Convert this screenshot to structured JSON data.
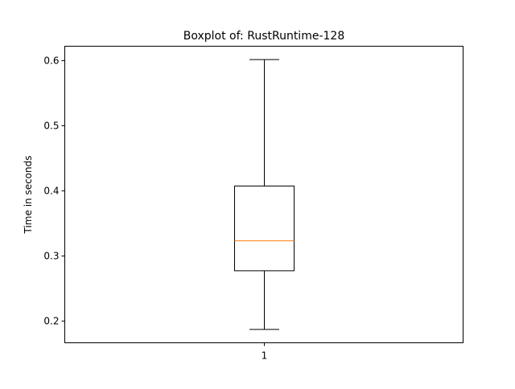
{
  "chart_data": {
    "type": "boxplot",
    "title": "Boxplot of: RustRuntime-128",
    "xlabel": "",
    "ylabel": "Time in seconds",
    "categories": [
      "1"
    ],
    "boxes": [
      {
        "category": "1",
        "whisker_low": 0.187,
        "q1": 0.277,
        "median": 0.323,
        "q3": 0.407,
        "whisker_high": 0.601
      }
    ],
    "yticks": [
      0.2,
      0.3,
      0.4,
      0.5,
      0.6
    ],
    "ytick_labels": [
      "0.2",
      "0.3",
      "0.4",
      "0.5",
      "0.6"
    ],
    "ylim": [
      0.1665,
      0.6215
    ],
    "grid": false,
    "legend": "none",
    "colors": {
      "box": "#000000",
      "median": "#ff7f0e",
      "axes": "#000000",
      "background": "#ffffff"
    }
  }
}
